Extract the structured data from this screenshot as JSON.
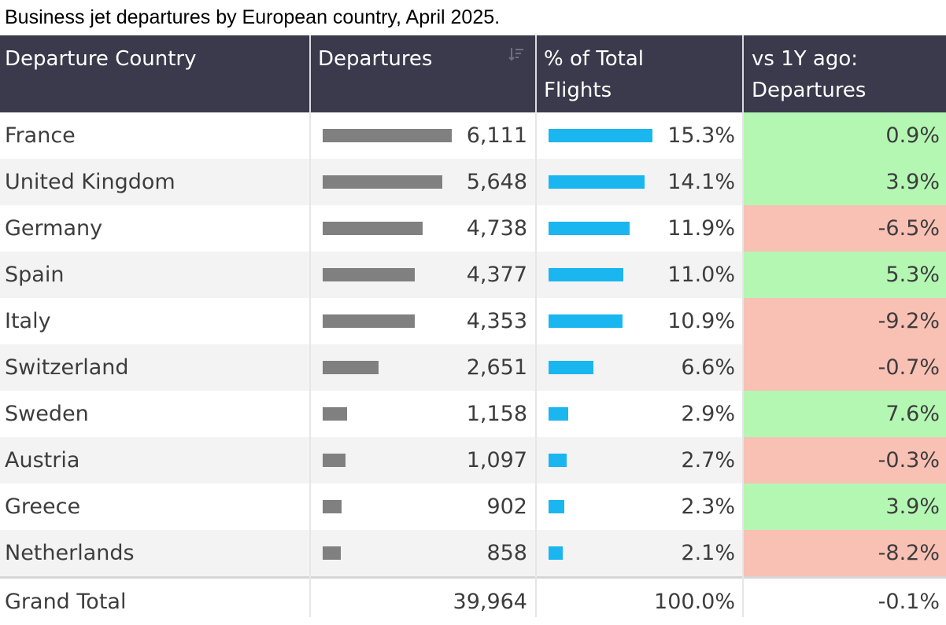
{
  "title": "Business jet departures by European country, April 2025.",
  "colors": {
    "header_bg": "#3b3a4c",
    "departures_bar": "#808080",
    "share_bar": "#1ab6f0",
    "positive_change": "#b3f7b3",
    "negative_change": "#f9c0b4"
  },
  "chart_data": {
    "type": "table",
    "columns": [
      "Departure Country",
      "Departures",
      "% of Total\nFlights",
      "vs 1Y ago:\nDepartures"
    ],
    "rows": [
      {
        "country": "France",
        "departures": 6111,
        "departures_label": "6,111",
        "share_pct": 15.3,
        "share_label": "15.3%",
        "yoy_pct": 0.9,
        "yoy_label": "0.9%"
      },
      {
        "country": "United Kingdom",
        "departures": 5648,
        "departures_label": "5,648",
        "share_pct": 14.1,
        "share_label": "14.1%",
        "yoy_pct": 3.9,
        "yoy_label": "3.9%"
      },
      {
        "country": "Germany",
        "departures": 4738,
        "departures_label": "4,738",
        "share_pct": 11.9,
        "share_label": "11.9%",
        "yoy_pct": -6.5,
        "yoy_label": "-6.5%"
      },
      {
        "country": "Spain",
        "departures": 4377,
        "departures_label": "4,377",
        "share_pct": 11.0,
        "share_label": "11.0%",
        "yoy_pct": 5.3,
        "yoy_label": "5.3%"
      },
      {
        "country": "Italy",
        "departures": 4353,
        "departures_label": "4,353",
        "share_pct": 10.9,
        "share_label": "10.9%",
        "yoy_pct": -9.2,
        "yoy_label": "-9.2%"
      },
      {
        "country": "Switzerland",
        "departures": 2651,
        "departures_label": "2,651",
        "share_pct": 6.6,
        "share_label": "6.6%",
        "yoy_pct": -0.7,
        "yoy_label": "-0.7%"
      },
      {
        "country": "Sweden",
        "departures": 1158,
        "departures_label": "1,158",
        "share_pct": 2.9,
        "share_label": "2.9%",
        "yoy_pct": 7.6,
        "yoy_label": "7.6%"
      },
      {
        "country": "Austria",
        "departures": 1097,
        "departures_label": "1,097",
        "share_pct": 2.7,
        "share_label": "2.7%",
        "yoy_pct": -0.3,
        "yoy_label": "-0.3%"
      },
      {
        "country": "Greece",
        "departures": 902,
        "departures_label": "902",
        "share_pct": 2.3,
        "share_label": "2.3%",
        "yoy_pct": 3.9,
        "yoy_label": "3.9%"
      },
      {
        "country": "Netherlands",
        "departures": 858,
        "departures_label": "858",
        "share_pct": 2.1,
        "share_label": "2.1%",
        "yoy_pct": -8.2,
        "yoy_label": "-8.2%"
      }
    ],
    "total": {
      "label": "Grand Total",
      "departures_label": "39,964",
      "share_label": "100.0%",
      "yoy_label": "-0.1%"
    }
  }
}
